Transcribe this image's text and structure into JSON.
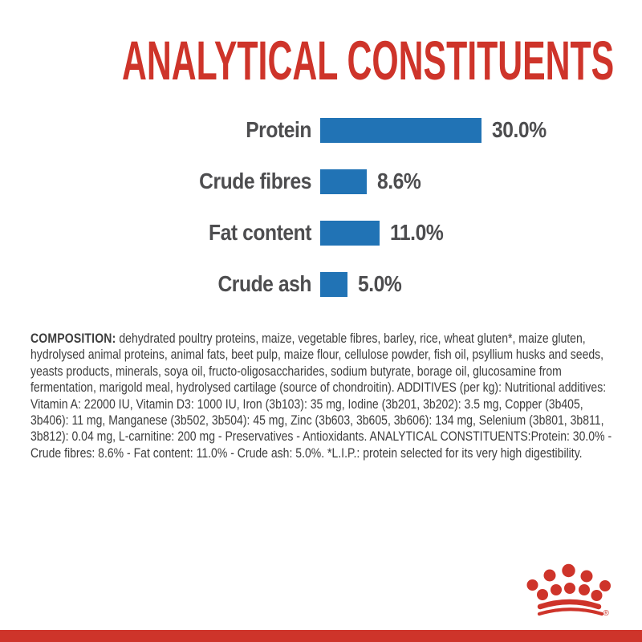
{
  "page": {
    "title": "ANALYTICAL CONSTITUENTS"
  },
  "colors": {
    "brand_red": "#CE342A",
    "bar_blue": "#2173B5",
    "label_gray": "#4D4D4F",
    "body_text": "#3D3D3D",
    "background": "#FFFFFF"
  },
  "chart_data": {
    "type": "bar",
    "orientation": "horizontal",
    "title": "ANALYTICAL CONSTITUENTS",
    "categories": [
      "Protein",
      "Crude fibres",
      "Fat content",
      "Crude ash"
    ],
    "values": [
      30.0,
      8.6,
      11.0,
      5.0
    ],
    "value_labels": [
      "30.0%",
      "8.6%",
      "11.0%",
      "5.0%"
    ],
    "unit": "%",
    "xlim": [
      0,
      30
    ],
    "bar_color": "#2173B5",
    "grid": false,
    "legend": false
  },
  "composition": {
    "label": "COMPOSITION:",
    "text": "dehydrated poultry proteins, maize, vegetable fibres, barley, rice, wheat gluten*, maize gluten, hydrolysed animal proteins, animal fats, beet pulp, maize flour, cellulose powder, fish oil, psyllium husks and seeds, yeasts products, minerals, soya oil, fructo-oligosaccharides, sodium butyrate, borage oil, glucosamine from fermentation, marigold meal, hydrolysed cartilage (source of chondroitin). ADDITIVES (per kg): Nutritional additives: Vitamin A: 22000 IU, Vitamin D3: 1000 IU, Iron (3b103): 35 mg, Iodine (3b201, 3b202): 3.5 mg, Copper (3b405, 3b406): 11 mg, Manganese (3b502, 3b504): 45 mg, Zinc (3b603, 3b605, 3b606): 134 mg, Selenium (3b801, 3b811, 3b812): 0.04 mg, L-carnitine: 200 mg - Preservatives - Antioxidants. ANALYTICAL CONSTITUENTS:Protein: 30.0% - Crude fibres: 8.6% - Fat content: 11.0% - Crude ash: 5.0%. *L.I.P.: protein selected for its very high digestibility."
  },
  "logo": {
    "registered_mark": "®",
    "color": "#CE342A"
  }
}
